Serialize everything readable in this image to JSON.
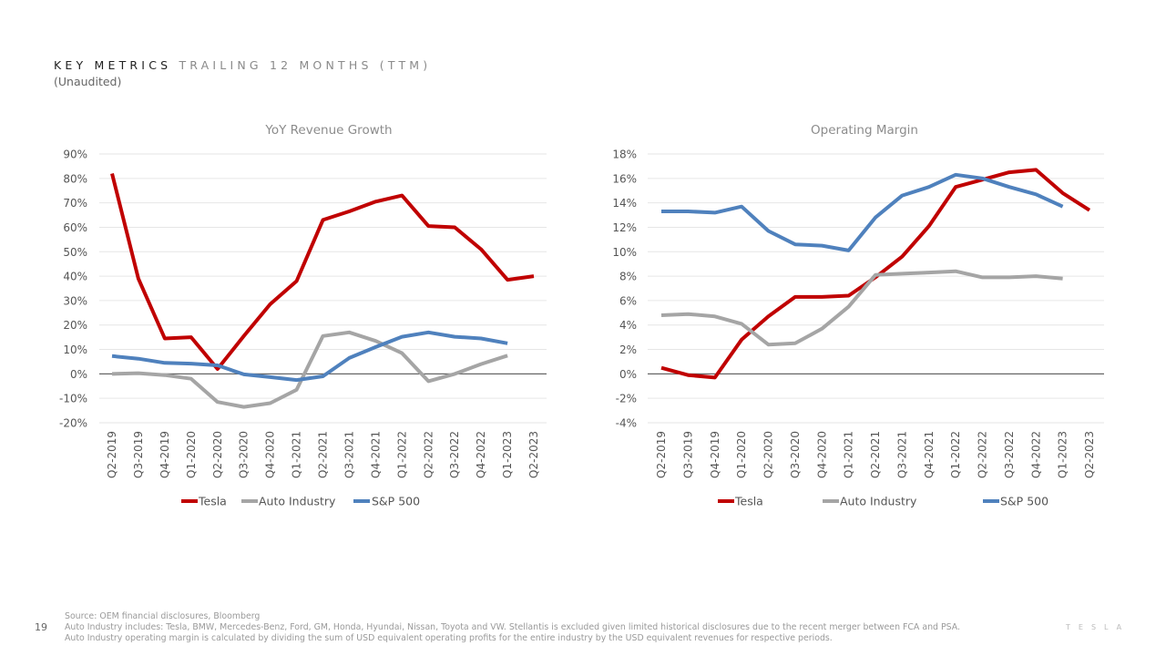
{
  "header": {
    "title_strong": "KEY METRICS",
    "title_light": "TRAILING 12 MONTHS (TTM)",
    "subtitle": "(Unaudited)"
  },
  "colors": {
    "tesla": "#c00000",
    "auto": "#a5a5a5",
    "sp500": "#4f81bd"
  },
  "chart_data": [
    {
      "type": "line",
      "title": "YoY Revenue Growth",
      "xlabel": "",
      "ylabel": "",
      "ylim": [
        -20,
        90
      ],
      "yticks": [
        90,
        80,
        70,
        60,
        50,
        40,
        30,
        20,
        10,
        0,
        -10,
        -20
      ],
      "ytick_labels": [
        "90%",
        "80%",
        "70%",
        "60%",
        "50%",
        "40%",
        "30%",
        "20%",
        "10%",
        "0%",
        "-10%",
        "-20%"
      ],
      "categories": [
        "Q2-2019",
        "Q3-2019",
        "Q4-2019",
        "Q1-2020",
        "Q2-2020",
        "Q3-2020",
        "Q4-2020",
        "Q1-2021",
        "Q2-2021",
        "Q3-2021",
        "Q4-2021",
        "Q1-2022",
        "Q2-2022",
        "Q3-2022",
        "Q4-2022",
        "Q1-2023",
        "Q2-2023"
      ],
      "legend": "bottom",
      "series": [
        {
          "name": "Tesla",
          "color_key": "tesla",
          "values": [
            82,
            39,
            14.5,
            15,
            2,
            15.5,
            28.5,
            38,
            63,
            66.5,
            70.5,
            73,
            60.5,
            60,
            51,
            38.5,
            40
          ]
        },
        {
          "name": "Auto Industry",
          "color_key": "auto",
          "values": [
            0,
            0.3,
            -0.5,
            -2,
            -11.5,
            -13.5,
            -12,
            -6.5,
            15.5,
            17,
            13.5,
            8.5,
            -3,
            0,
            4,
            7.5,
            null
          ]
        },
        {
          "name": "S&P 500",
          "color_key": "sp500",
          "values": [
            7.3,
            6.2,
            4.5,
            4.2,
            3.5,
            -0.2,
            -1.3,
            -2.5,
            -1,
            6.5,
            11,
            15.2,
            17,
            15.2,
            14.5,
            12.5,
            null
          ]
        }
      ]
    },
    {
      "type": "line",
      "title": "Operating Margin",
      "xlabel": "",
      "ylabel": "",
      "ylim": [
        -4,
        18
      ],
      "yticks": [
        18,
        16,
        14,
        12,
        10,
        8,
        6,
        4,
        2,
        0,
        -2,
        -4
      ],
      "ytick_labels": [
        "18%",
        "16%",
        "14%",
        "12%",
        "10%",
        "8%",
        "6%",
        "4%",
        "2%",
        "0%",
        "-2%",
        "-4%"
      ],
      "categories": [
        "Q2-2019",
        "Q3-2019",
        "Q4-2019",
        "Q1-2020",
        "Q2-2020",
        "Q3-2020",
        "Q4-2020",
        "Q1-2021",
        "Q2-2021",
        "Q3-2021",
        "Q4-2021",
        "Q1-2022",
        "Q2-2022",
        "Q3-2022",
        "Q4-2022",
        "Q1-2023",
        "Q2-2023"
      ],
      "legend": "bottom",
      "series": [
        {
          "name": "Tesla",
          "color_key": "tesla",
          "values": [
            0.5,
            -0.1,
            -0.3,
            2.8,
            4.7,
            6.3,
            6.3,
            6.4,
            7.9,
            9.6,
            12.1,
            15.3,
            15.9,
            16.5,
            16.7,
            14.8,
            13.4
          ]
        },
        {
          "name": "Auto Industry",
          "color_key": "auto",
          "values": [
            4.8,
            4.9,
            4.7,
            4.1,
            2.4,
            2.5,
            3.7,
            5.5,
            8.1,
            8.2,
            8.3,
            8.4,
            7.9,
            7.9,
            8.0,
            7.8,
            null
          ]
        },
        {
          "name": "S&P 500",
          "color_key": "sp500",
          "values": [
            13.3,
            13.3,
            13.2,
            13.7,
            11.7,
            10.6,
            10.5,
            10.1,
            12.8,
            14.6,
            15.3,
            16.3,
            16.0,
            15.3,
            14.7,
            13.7,
            null
          ]
        }
      ]
    }
  ],
  "footer": {
    "page_number": "19",
    "notes": [
      "Source: OEM financial disclosures, Bloomberg",
      "Auto Industry includes: Tesla, BMW, Mercedes-Benz, Ford, GM, Honda, Hyundai, Nissan, Toyota and VW. Stellantis is excluded given limited historical disclosures due to the recent merger between FCA and PSA.",
      "Auto Industry operating margin is calculated by dividing the sum of USD equivalent operating profits for the entire industry by the USD equivalent revenues for respective periods."
    ],
    "brand": "TESLA"
  }
}
